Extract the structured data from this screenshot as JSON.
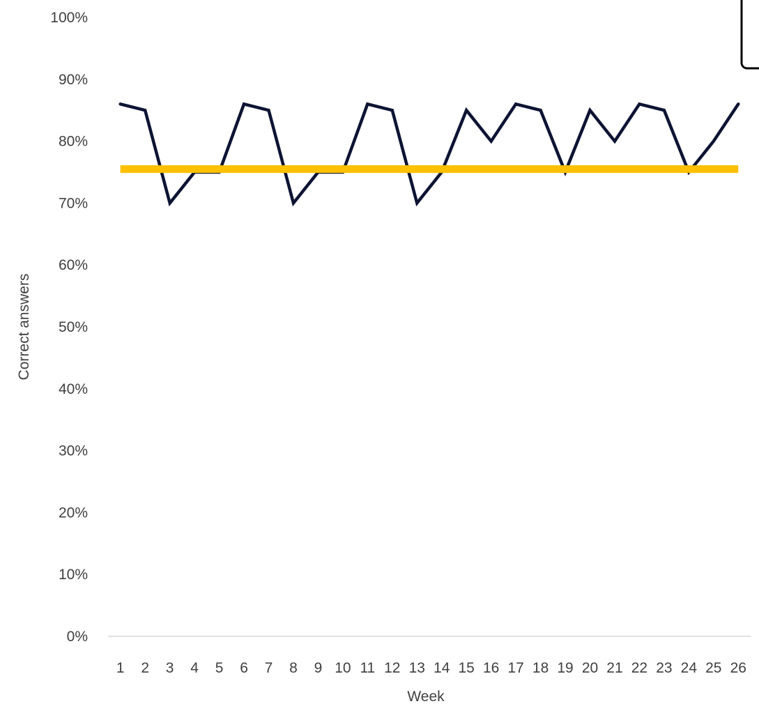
{
  "chart_data": {
    "type": "line",
    "title": "",
    "xlabel": "Week",
    "ylabel": "Correct answers",
    "ylim": [
      0,
      1
    ],
    "y_tick_step": 0.1,
    "y_format": "percent",
    "grid": false,
    "legend_position": "top-right",
    "x": [
      1,
      2,
      3,
      4,
      5,
      6,
      7,
      8,
      9,
      10,
      11,
      12,
      13,
      14,
      15,
      16,
      17,
      18,
      19,
      20,
      21,
      22,
      23,
      24,
      25,
      26
    ],
    "series": [
      {
        "values": [
          0.86,
          0.85,
          0.7,
          0.75,
          0.75,
          0.86,
          0.85,
          0.7,
          0.75,
          0.75,
          0.86,
          0.85,
          0.7,
          0.75,
          0.85,
          0.8,
          0.86,
          0.85,
          0.75,
          0.85,
          0.8,
          0.86,
          0.85,
          0.75,
          0.8,
          0.86
        ],
        "color": "#0d1433"
      },
      {
        "values": [
          0.755,
          0.755,
          0.755,
          0.755,
          0.755,
          0.755,
          0.755,
          0.755,
          0.755,
          0.755,
          0.755,
          0.755,
          0.755,
          0.755,
          0.755,
          0.755,
          0.755,
          0.755,
          0.755,
          0.755,
          0.755,
          0.755,
          0.755,
          0.755,
          0.755,
          0.755
        ],
        "color": "#ffc000"
      }
    ],
    "axis_color": "#d9d9d9"
  }
}
